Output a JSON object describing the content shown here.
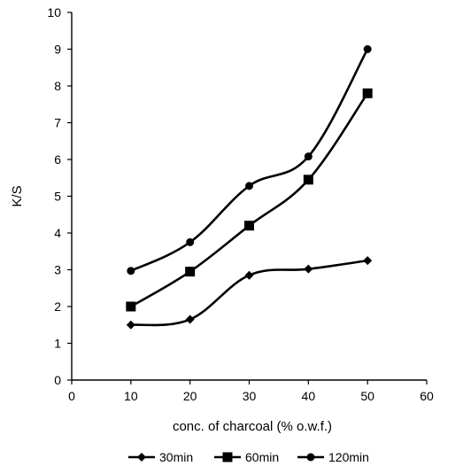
{
  "chart_data": {
    "type": "line",
    "title": "",
    "xlabel": "conc. of charcoal (% o.w.f.)",
    "ylabel": "K/S",
    "xlim": [
      0,
      60
    ],
    "ylim": [
      0,
      10
    ],
    "xticks": [
      0,
      10,
      20,
      30,
      40,
      50,
      60
    ],
    "yticks": [
      0,
      1,
      2,
      3,
      4,
      5,
      6,
      7,
      8,
      9,
      10
    ],
    "x": [
      10,
      20,
      30,
      40,
      50
    ],
    "series": [
      {
        "name": "30min",
        "marker": "diamond",
        "values": [
          1.5,
          1.65,
          2.85,
          3.02,
          3.25
        ]
      },
      {
        "name": "60min",
        "marker": "square",
        "values": [
          2.0,
          2.95,
          4.2,
          5.45,
          7.8
        ]
      },
      {
        "name": "120min",
        "marker": "circle",
        "values": [
          2.97,
          3.75,
          5.28,
          6.08,
          9.0
        ]
      }
    ],
    "grid": false,
    "legend_position": "bottom",
    "line_color": "#000000",
    "smooth": true
  }
}
